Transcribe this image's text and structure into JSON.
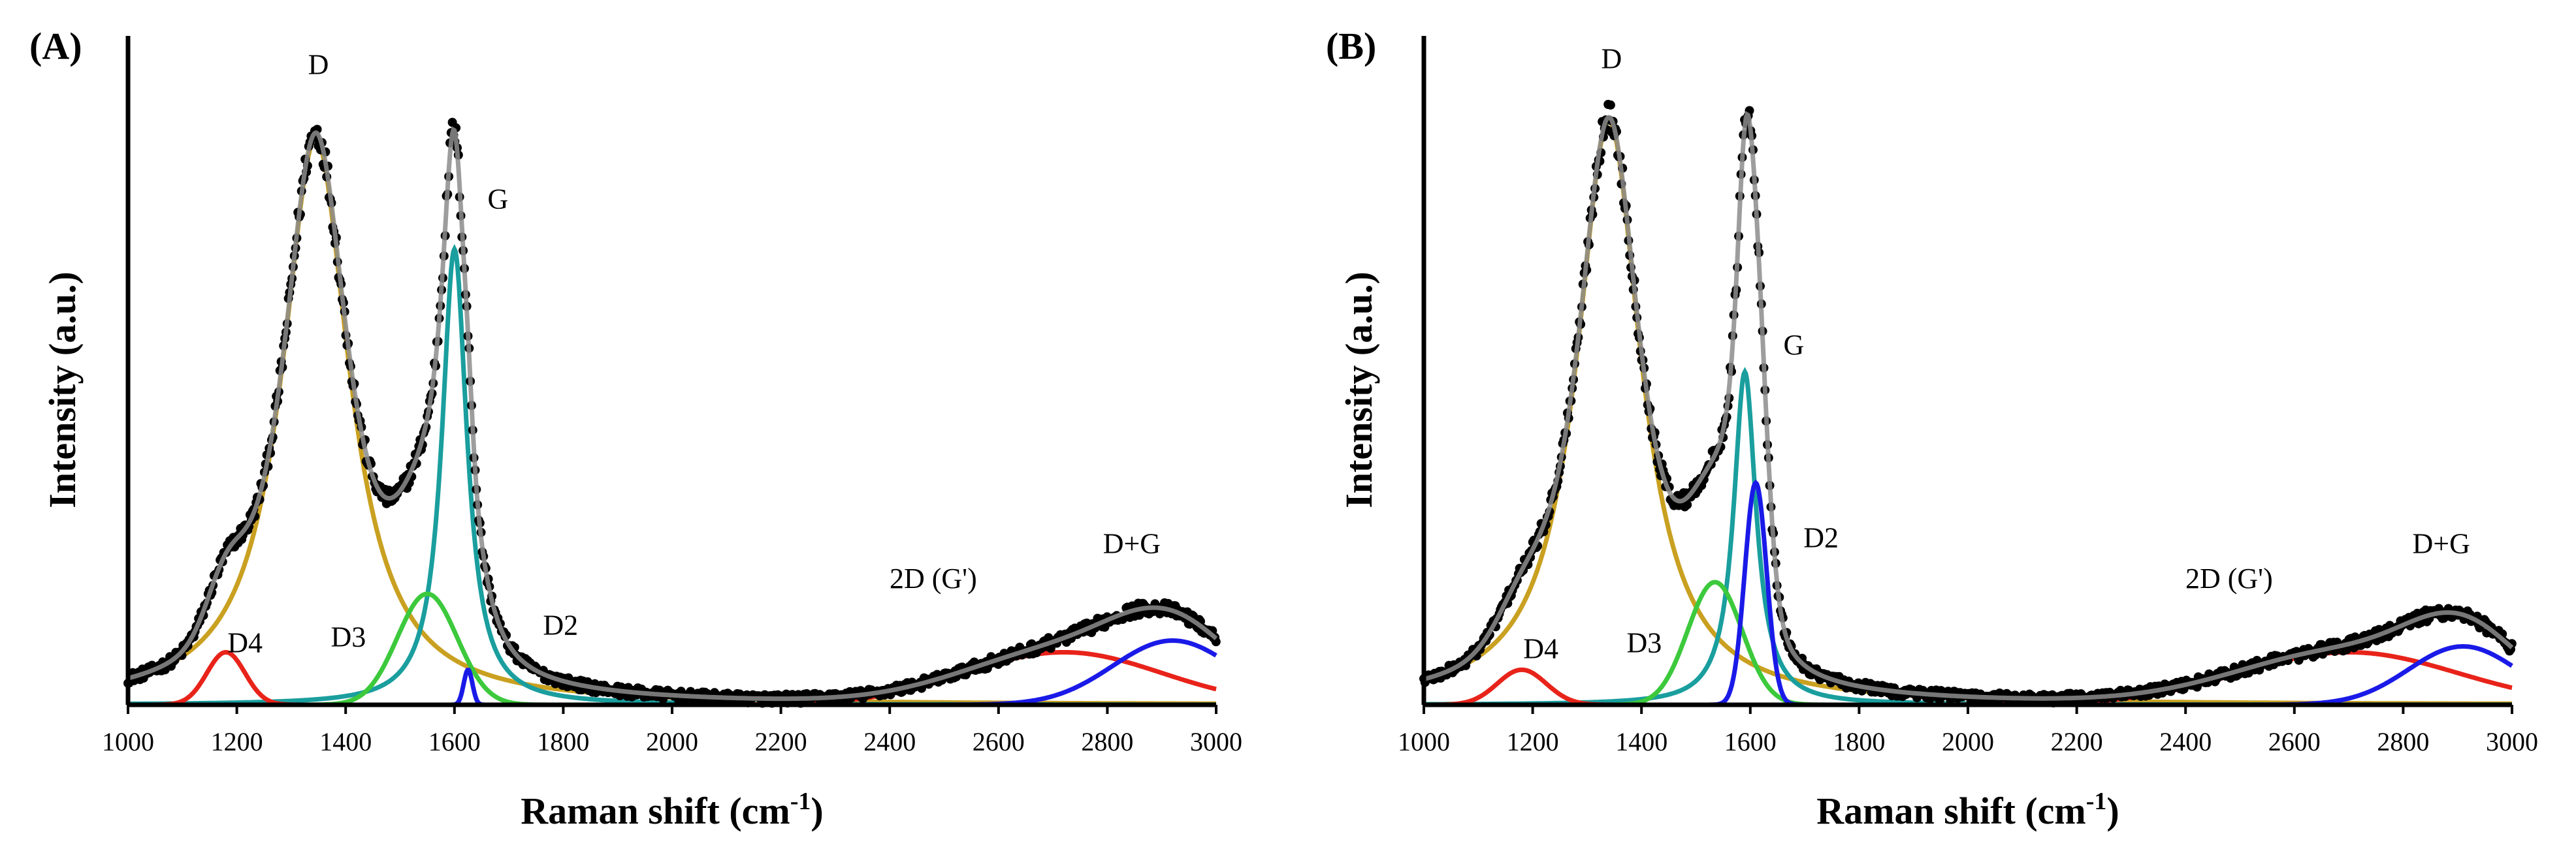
{
  "chart_data": [
    {
      "type": "line",
      "panel": "(A)",
      "xlabel": "Raman shift (cm",
      "xlabel_sup": "-1",
      "xlabel_close": ")",
      "ylabel": "Intensity (a.u.)",
      "xlim": [
        1000,
        3000
      ],
      "ylim": [
        0,
        100
      ],
      "xticks": [
        "1000",
        "1200",
        "1400",
        "1600",
        "1800",
        "2000",
        "2200",
        "2400",
        "2600",
        "2800",
        "3000"
      ],
      "peak_labels": [
        {
          "text": "D",
          "x": 1350,
          "y": 108
        },
        {
          "text": "G",
          "x": 1680,
          "y": 85
        },
        {
          "text": "D4",
          "x": 1215,
          "y": 9
        },
        {
          "text": "D3",
          "x": 1405,
          "y": 10
        },
        {
          "text": "D2",
          "x": 1795,
          "y": 12
        },
        {
          "text": "2D (G')",
          "x": 2480,
          "y": 20
        },
        {
          "text": "D+G",
          "x": 2845,
          "y": 26
        }
      ],
      "series": [
        {
          "name": "D",
          "color": "#C9A020",
          "type": "lorentz",
          "center": 1345,
          "amp": 97,
          "hwhm": 75
        },
        {
          "name": "G",
          "color": "#1A9E9E",
          "type": "lorentz",
          "center": 1600,
          "amp": 78,
          "hwhm": 28
        },
        {
          "name": "D4",
          "color": "#E8231A",
          "type": "gauss",
          "center": 1180,
          "amp": 9,
          "sigma": 35
        },
        {
          "name": "D3",
          "color": "#3CC93C",
          "type": "gauss",
          "center": 1550,
          "amp": 19,
          "sigma": 55
        },
        {
          "name": "D2",
          "color": "#1A1AE8",
          "type": "gauss",
          "center": 1625,
          "amp": 6,
          "sigma": 8
        },
        {
          "name": "2D (G')",
          "color": "#E8231A",
          "type": "gauss",
          "center": 2720,
          "amp": 9,
          "sigma": 180
        },
        {
          "name": "D+G",
          "color": "#1A1AE8",
          "type": "gauss",
          "center": 2920,
          "amp": 11,
          "sigma": 110
        },
        {
          "name": "Fit",
          "color": "#8C8C8C",
          "type": "sum"
        },
        {
          "name": "Measured data",
          "color": "#000000",
          "type": "scatter"
        }
      ]
    },
    {
      "type": "line",
      "panel": "(B)",
      "xlabel": "Raman shift (cm",
      "xlabel_sup": "-1",
      "xlabel_close": ")",
      "ylabel": "Intensity (a.u.)",
      "xlim": [
        1000,
        3000
      ],
      "ylim": [
        0,
        100
      ],
      "xticks": [
        "1000",
        "1200",
        "1400",
        "1600",
        "1800",
        "2000",
        "2200",
        "2400",
        "2600",
        "2800",
        "3000"
      ],
      "peak_labels": [
        {
          "text": "D",
          "x": 1345,
          "y": 109
        },
        {
          "text": "G",
          "x": 1680,
          "y": 60
        },
        {
          "text": "D4",
          "x": 1215,
          "y": 8
        },
        {
          "text": "D3",
          "x": 1405,
          "y": 9
        },
        {
          "text": "D2",
          "x": 1730,
          "y": 27
        },
        {
          "text": "2D (G')",
          "x": 2480,
          "y": 20
        },
        {
          "text": "D+G",
          "x": 2870,
          "y": 26
        }
      ],
      "series": [
        {
          "name": "D",
          "color": "#C9A020",
          "type": "lorentz",
          "center": 1340,
          "amp": 100,
          "hwhm": 72
        },
        {
          "name": "G",
          "color": "#1A9E9E",
          "type": "lorentz",
          "center": 1590,
          "amp": 57,
          "hwhm": 25
        },
        {
          "name": "D4",
          "color": "#E8231A",
          "type": "gauss",
          "center": 1180,
          "amp": 6,
          "sigma": 45
        },
        {
          "name": "D3",
          "color": "#3CC93C",
          "type": "gauss",
          "center": 1535,
          "amp": 21,
          "sigma": 50
        },
        {
          "name": "D2",
          "color": "#1A1AE8",
          "type": "gauss",
          "center": 1610,
          "amp": 38,
          "sigma": 20
        },
        {
          "name": "2D (G')",
          "color": "#E8231A",
          "type": "gauss",
          "center": 2700,
          "amp": 9,
          "sigma": 200
        },
        {
          "name": "D+G",
          "color": "#1A1AE8",
          "type": "gauss",
          "center": 2910,
          "amp": 10,
          "sigma": 100
        },
        {
          "name": "Fit",
          "color": "#8C8C8C",
          "type": "sum"
        },
        {
          "name": "Measured data",
          "color": "#000000",
          "type": "scatter"
        }
      ]
    }
  ]
}
